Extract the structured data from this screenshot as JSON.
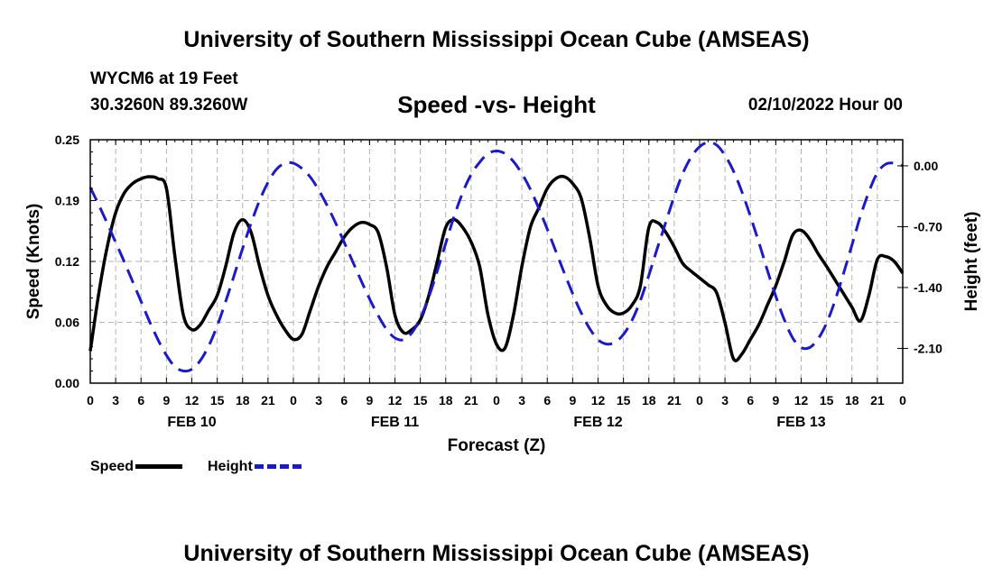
{
  "header": {
    "title": "University of Southern Mississippi Ocean Cube (AMSEAS)",
    "station": "WYCM6 at 19 Feet",
    "coords": "30.3260N  89.3260W",
    "subtitle": "Speed -vs- Height",
    "date": "02/10/2022 Hour 00"
  },
  "footer": {
    "title": "University of Southern Mississippi Ocean Cube (AMSEAS)"
  },
  "legend": {
    "speed": "Speed",
    "height": "Height"
  },
  "colors": {
    "speed": "#000000",
    "height": "#1a1acc",
    "grid": "#b4b4b4"
  },
  "chart_data": {
    "type": "line",
    "title": "Speed -vs- Height",
    "xlabel": "Forecast (Z)",
    "ylabel": "Speed (Knots)",
    "y2label": "Height (feet)",
    "x_unit": "hours from 02/10/2022 00Z",
    "xlim": [
      0,
      96
    ],
    "ylim": [
      0,
      0.25
    ],
    "y2lim": [
      -2.5,
      0.3
    ],
    "x_tick_values": [
      0,
      3,
      6,
      9,
      12,
      15,
      18,
      21,
      24,
      27,
      30,
      33,
      36,
      39,
      42,
      45,
      48,
      51,
      54,
      57,
      60,
      63,
      66,
      69,
      72,
      75,
      78,
      81,
      84,
      87,
      90,
      93,
      96
    ],
    "x_tick_labels": [
      "0",
      "3",
      "6",
      "9",
      "12",
      "15",
      "18",
      "21",
      "0",
      "3",
      "6",
      "9",
      "12",
      "15",
      "18",
      "21",
      "0",
      "3",
      "6",
      "9",
      "12",
      "15",
      "18",
      "21",
      "0",
      "3",
      "6",
      "9",
      "12",
      "15",
      "18",
      "21",
      "0"
    ],
    "day_labels": [
      {
        "x": 12,
        "label": "FEB 10"
      },
      {
        "x": 36,
        "label": "FEB 11"
      },
      {
        "x": 60,
        "label": "FEB 12"
      },
      {
        "x": 84,
        "label": "FEB 13"
      }
    ],
    "y_ticks": [
      {
        "value": 0.0,
        "label": "0.00"
      },
      {
        "value": 0.0625,
        "label": "0.06"
      },
      {
        "value": 0.125,
        "label": "0.12"
      },
      {
        "value": 0.1875,
        "label": "0.19"
      },
      {
        "value": 0.25,
        "label": "0.25"
      }
    ],
    "y2_ticks": [
      {
        "value": 0.0,
        "label": "0.00"
      },
      {
        "value": -0.7,
        "label": "-0.70"
      },
      {
        "value": -1.4,
        "label": "-1.40"
      },
      {
        "value": -2.1,
        "label": "-2.10"
      }
    ],
    "series": [
      {
        "name": "Speed",
        "axis": "left",
        "style": "solid",
        "x": [
          0,
          1,
          2,
          3,
          4,
          5,
          6,
          7,
          8,
          9,
          10,
          11,
          12,
          13,
          14,
          15,
          16,
          17,
          18,
          19,
          20,
          21,
          22,
          23,
          24,
          25,
          26,
          27,
          28,
          29,
          30,
          31,
          32,
          33,
          34,
          35,
          36,
          37,
          38,
          39,
          40,
          41,
          42,
          43,
          44,
          45,
          46,
          47,
          48,
          49,
          50,
          51,
          52,
          53,
          54,
          55,
          56,
          57,
          58,
          59,
          60,
          61,
          62,
          63,
          64,
          65,
          66,
          67,
          68,
          69,
          70,
          71,
          72,
          73,
          74,
          75,
          76,
          77,
          78,
          79,
          80,
          81,
          82,
          83,
          84,
          85,
          86,
          87,
          88,
          89,
          90,
          91,
          92,
          93,
          94,
          95,
          96
        ],
        "values": [
          0.033,
          0.092,
          0.14,
          0.175,
          0.195,
          0.205,
          0.21,
          0.212,
          0.21,
          0.2,
          0.13,
          0.07,
          0.055,
          0.06,
          0.075,
          0.09,
          0.12,
          0.155,
          0.168,
          0.155,
          0.12,
          0.09,
          0.07,
          0.055,
          0.045,
          0.05,
          0.075,
          0.1,
          0.12,
          0.135,
          0.15,
          0.16,
          0.165,
          0.163,
          0.155,
          0.12,
          0.07,
          0.052,
          0.055,
          0.065,
          0.09,
          0.125,
          0.16,
          0.168,
          0.16,
          0.145,
          0.12,
          0.07,
          0.04,
          0.036,
          0.07,
          0.12,
          0.16,
          0.18,
          0.2,
          0.21,
          0.212,
          0.205,
          0.19,
          0.15,
          0.1,
          0.08,
          0.072,
          0.072,
          0.08,
          0.1,
          0.16,
          0.165,
          0.155,
          0.14,
          0.123,
          0.115,
          0.108,
          0.101,
          0.093,
          0.062,
          0.025,
          0.03,
          0.045,
          0.06,
          0.08,
          0.1,
          0.125,
          0.152,
          0.157,
          0.148,
          0.133,
          0.12,
          0.106,
          0.092,
          0.078,
          0.064,
          0.09,
          0.127,
          0.13,
          0.125,
          0.113
        ]
      },
      {
        "name": "Height",
        "axis": "right",
        "style": "dashed",
        "x": [
          0,
          1,
          2,
          3,
          4,
          5,
          6,
          7,
          8,
          9,
          10,
          11,
          12,
          13,
          14,
          15,
          16,
          17,
          18,
          19,
          20,
          21,
          22,
          23,
          24,
          25,
          26,
          27,
          28,
          29,
          30,
          31,
          32,
          33,
          34,
          35,
          36,
          37,
          38,
          39,
          40,
          41,
          42,
          43,
          44,
          45,
          46,
          47,
          48,
          49,
          50,
          51,
          52,
          53,
          54,
          55,
          56,
          57,
          58,
          59,
          60,
          61,
          62,
          63,
          64,
          65,
          66,
          67,
          68,
          69,
          70,
          71,
          72,
          73,
          74,
          75,
          76,
          77,
          78,
          79,
          80,
          81,
          82,
          83,
          84,
          85,
          86,
          87,
          88,
          89,
          90,
          91,
          92,
          93,
          94,
          95,
          96
        ],
        "values": [
          -0.25,
          -0.45,
          -0.66,
          -0.88,
          -1.1,
          -1.33,
          -1.56,
          -1.79,
          -2.0,
          -2.18,
          -2.31,
          -2.36,
          -2.34,
          -2.24,
          -2.07,
          -1.84,
          -1.56,
          -1.26,
          -0.95,
          -0.66,
          -0.4,
          -0.19,
          -0.04,
          0.03,
          0.03,
          -0.03,
          -0.13,
          -0.28,
          -0.46,
          -0.66,
          -0.88,
          -1.1,
          -1.32,
          -1.53,
          -1.72,
          -1.88,
          -1.98,
          -2.0,
          -1.92,
          -1.75,
          -1.51,
          -1.21,
          -0.89,
          -0.58,
          -0.31,
          -0.1,
          0.04,
          0.14,
          0.17,
          0.14,
          0.05,
          -0.09,
          -0.27,
          -0.49,
          -0.73,
          -0.98,
          -1.23,
          -1.47,
          -1.69,
          -1.87,
          -2.0,
          -2.05,
          -2.03,
          -1.94,
          -1.78,
          -1.55,
          -1.26,
          -0.95,
          -0.65,
          -0.35,
          -0.09,
          0.1,
          0.22,
          0.27,
          0.24,
          0.12,
          -0.06,
          -0.3,
          -0.58,
          -0.88,
          -1.2,
          -1.5,
          -1.77,
          -1.98,
          -2.09,
          -2.09,
          -1.99,
          -1.81,
          -1.55,
          -1.24,
          -0.91,
          -0.58,
          -0.3,
          -0.08,
          0.02,
          0.03,
          0.0
        ]
      }
    ]
  }
}
